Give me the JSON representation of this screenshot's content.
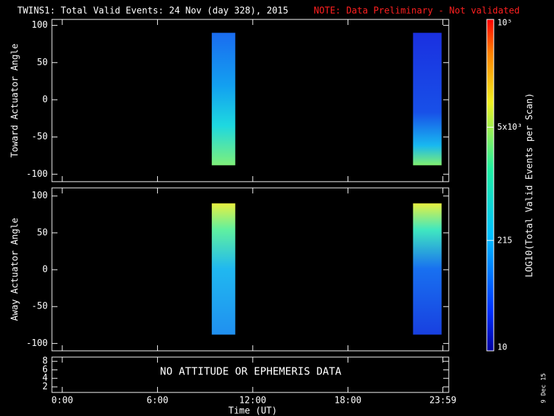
{
  "title": "TWINS1: Total Valid Events: 24 Nov (day 328), 2015",
  "note": "NOTE: Data Preliminary - Not validated",
  "xlabel": "Time (UT)",
  "xlim": [
    -0.65,
    24.35
  ],
  "xticks": [
    {
      "value": 0,
      "label": "0:00"
    },
    {
      "value": 6,
      "label": "6:00"
    },
    {
      "value": 12,
      "label": "12:00"
    },
    {
      "value": 18,
      "label": "18:00"
    },
    {
      "value": 23.98,
      "label": "23:59"
    }
  ],
  "panels": [
    {
      "ylabel": "Toward Actuator Angle",
      "ylim": [
        -110,
        108
      ],
      "yticks": [
        -100,
        -50,
        0,
        50,
        100
      ],
      "data_intervals": [
        [
          9.42,
          10.9
        ],
        [
          22.1,
          23.9
        ]
      ],
      "angle_range": [
        -88,
        90
      ]
    },
    {
      "ylabel": "Away Actuator Angle",
      "ylim": [
        -110,
        111
      ],
      "yticks": [
        -100,
        -50,
        0,
        50,
        100
      ],
      "data_intervals": [
        [
          9.42,
          10.9
        ],
        [
          22.1,
          23.9
        ]
      ],
      "angle_range": [
        -88,
        90
      ]
    },
    {
      "ylim": [
        0.7,
        9
      ],
      "yticks": [
        2,
        4,
        6,
        8
      ],
      "annotation": "NO ATTITUDE OR EPHEMERIS DATA"
    }
  ],
  "colorbar": {
    "label": "LOG10(Total Valid Events per Scan)",
    "log": true,
    "lim": [
      10,
      100000
    ],
    "ticks": [
      {
        "value": 10,
        "label": "10"
      },
      {
        "value": 215,
        "label": "215"
      },
      {
        "value": 5000,
        "label": "5x10³"
      },
      {
        "value": 100000,
        "label": "10⁵"
      }
    ]
  },
  "date": "9 Dec 15"
}
